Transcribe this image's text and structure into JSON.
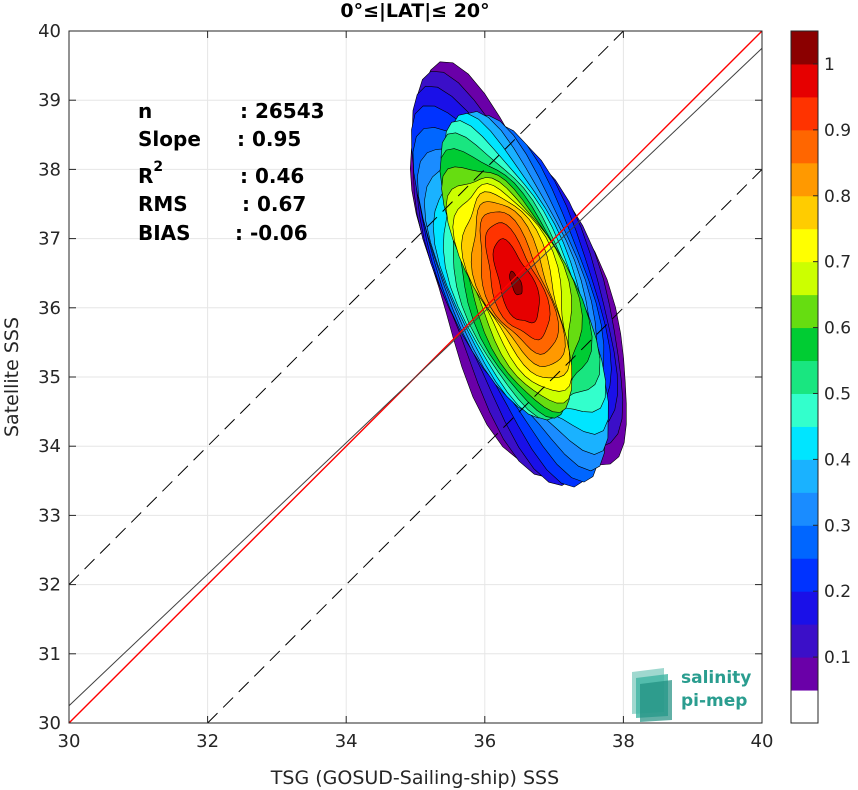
{
  "chart_data": {
    "type": "heatmap",
    "title": "0°≤|LAT|≤ 20°",
    "xlabel": "TSG (GOSUD-Sailing-ship) SSS",
    "ylabel": "Satellite SSS",
    "xlim": [
      30,
      40
    ],
    "ylim": [
      30,
      40
    ],
    "xticks": [
      30,
      32,
      34,
      36,
      38,
      40
    ],
    "yticks": [
      30,
      31,
      32,
      33,
      34,
      35,
      36,
      37,
      38,
      39,
      40
    ],
    "grid": true,
    "stats": [
      {
        "label": "n",
        "value": ": 26543"
      },
      {
        "label": "Slope",
        "value": ": 0.95"
      },
      {
        "label": "R",
        "sup": "2",
        "value": ": 0.46"
      },
      {
        "label": "RMS",
        "value": ": 0.67"
      },
      {
        "label": "BIAS",
        "value": ": -0.06"
      }
    ],
    "lines": [
      {
        "name": "identity",
        "color": "#ff0000",
        "slope": 1,
        "intercept": 0
      },
      {
        "name": "regression",
        "color": "#404040",
        "slope": 0.95,
        "intercept": 1.75
      },
      {
        "name": "upper-bound",
        "color": "#000000",
        "dash": true,
        "slope": 1,
        "intercept": 2
      },
      {
        "name": "lower-bound",
        "color": "#000000",
        "dash": true,
        "slope": 1,
        "intercept": -2
      }
    ],
    "density_center": [
      36.45,
      36.35
    ],
    "contour_levels": [
      0.05,
      0.1,
      0.15,
      0.2,
      0.25,
      0.3,
      0.35,
      0.4,
      0.45,
      0.5,
      0.55,
      0.6,
      0.65,
      0.7,
      0.75,
      0.8,
      0.85,
      0.9,
      0.95,
      1.0
    ],
    "colorbar": {
      "ticks": [
        "0.1",
        "0.2",
        "0.3",
        "0.4",
        "0.5",
        "0.6",
        "0.7",
        "0.8",
        "0.9",
        "1"
      ],
      "colors": [
        "#ffffff",
        "#6a00a8",
        "#3b0fc8",
        "#1a10e8",
        "#0033ff",
        "#0066ff",
        "#1a8cff",
        "#1ab2ff",
        "#00e5ff",
        "#33ffcc",
        "#19e680",
        "#00cc33",
        "#66dd11",
        "#ccff00",
        "#ffff00",
        "#ffcc00",
        "#ff9900",
        "#ff6600",
        "#ff3300",
        "#e60000",
        "#8b0000"
      ]
    }
  },
  "logo": {
    "line1": "salinity",
    "line2": "pi-mep"
  }
}
